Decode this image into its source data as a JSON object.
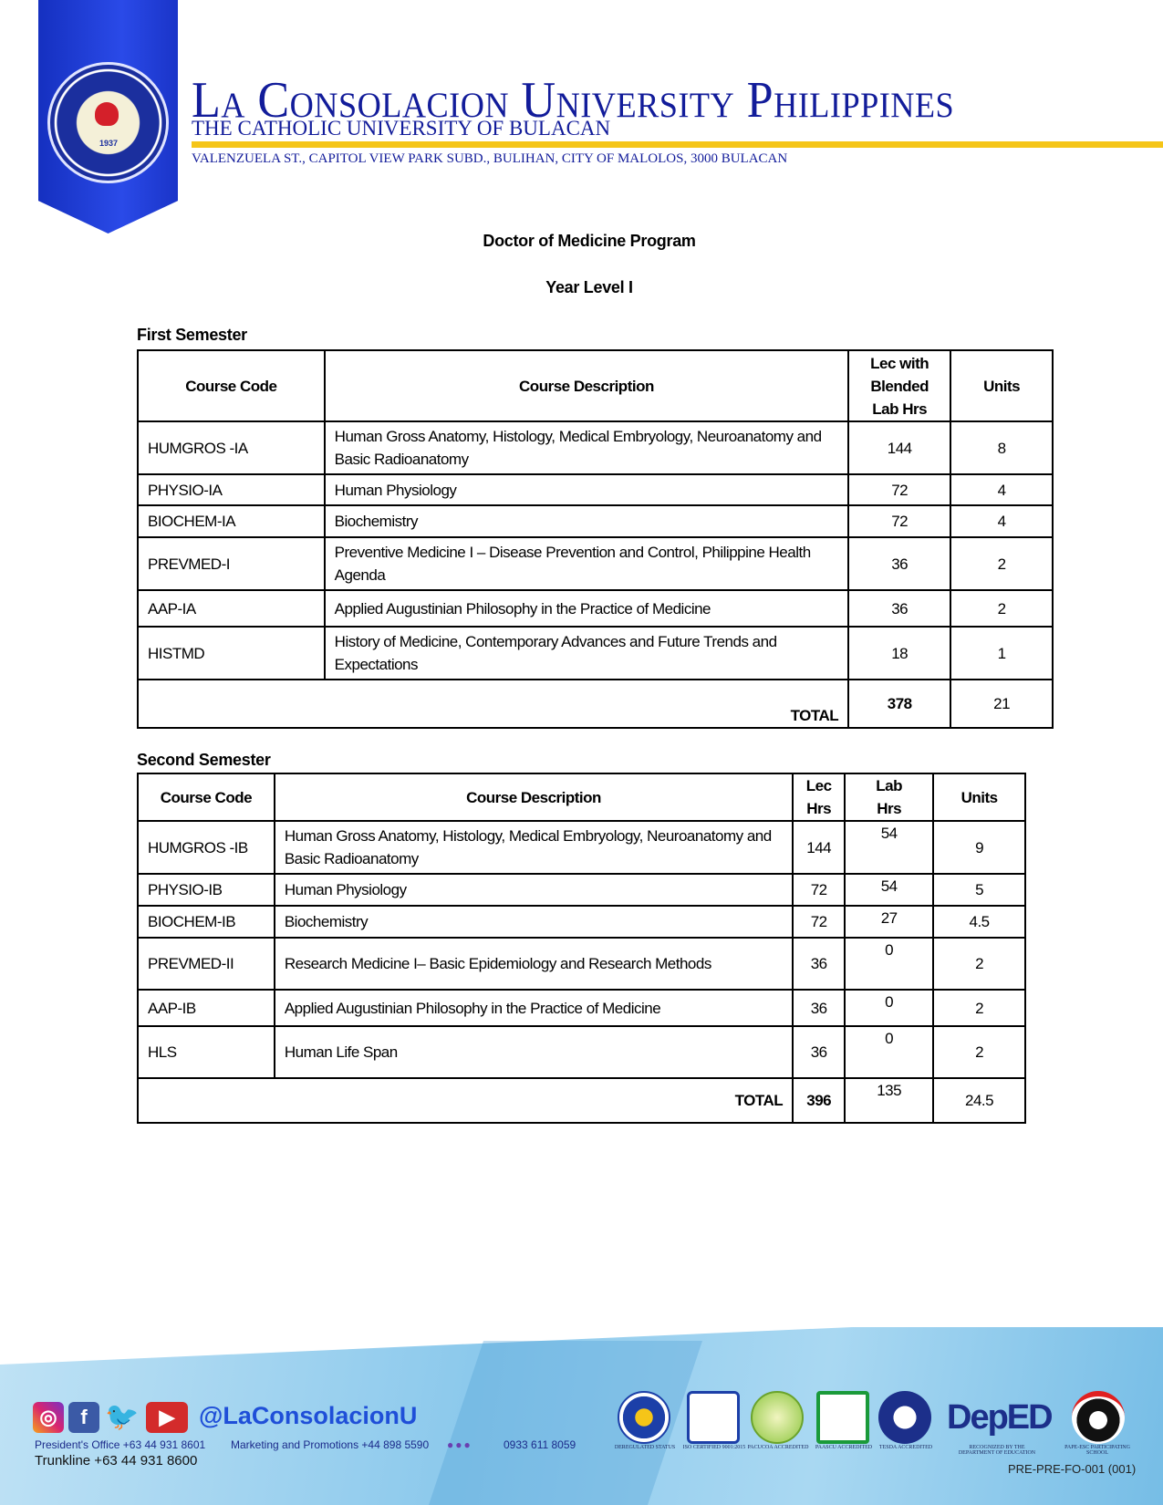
{
  "header": {
    "university": "La Consolacion University Philippines",
    "subtitle": "THE CATHOLIC UNIVERSITY OF BULACAN",
    "address": "VALENZUELA ST., CAPITOL VIEW PARK SUBD., BULIHAN, CITY OF MALOLOS, 3000 BULACAN",
    "seal_year": "1937"
  },
  "program": "Doctor of Medicine Program",
  "year_level": "Year Level I",
  "first": {
    "title": "First Semester",
    "headers": [
      "Course Code",
      "Course Description",
      "Lec with Blended Lab Hrs",
      "Units"
    ],
    "rows": [
      [
        "HUMGROS -IA",
        "Human Gross Anatomy, Histology, Medical Embryology, Neuroanatomy and Basic Radioanatomy",
        "144",
        "8"
      ],
      [
        "PHYSIO-IA",
        "Human Physiology",
        "72",
        "4"
      ],
      [
        "BIOCHEM-IA",
        "Biochemistry",
        "72",
        "4"
      ],
      [
        "PREVMED-I",
        "Preventive Medicine I – Disease Prevention and Control, Philippine Health Agenda",
        "36",
        "2"
      ],
      [
        "AAP-IA",
        "Applied Augustinian Philosophy in the Practice of Medicine",
        "36",
        "2"
      ],
      [
        "HISTMD",
        "History of Medicine, Contemporary Advances and Future Trends and Expectations",
        "18",
        "1"
      ]
    ],
    "total_label": "TOTAL",
    "total_hrs": "378",
    "total_units": "21"
  },
  "second": {
    "title": "Second Semester",
    "headers": [
      "Course Code",
      "Course Description",
      "Lec Hrs",
      "Lab Hrs",
      "Units"
    ],
    "rows": [
      [
        "HUMGROS -IB",
        "Human Gross Anatomy, Histology, Medical Embryology, Neuroanatomy and Basic Radioanatomy",
        "144",
        "54",
        "9"
      ],
      [
        "PHYSIO-IB",
        "Human Physiology",
        "72",
        "54",
        "5"
      ],
      [
        "BIOCHEM-IB",
        "Biochemistry",
        "72",
        "27",
        "4.5"
      ],
      [
        "PREVMED-II",
        "Research Medicine I– Basic Epidemiology and Research Methods",
        "36",
        "0",
        "2"
      ],
      [
        "AAP-IB",
        "Applied Augustinian Philosophy in the Practice of Medicine",
        "36",
        "0",
        "2"
      ],
      [
        "HLS",
        "Human Life Span",
        "36",
        "0",
        "2"
      ]
    ],
    "total_label": "TOTAL",
    "total_lec": "396",
    "total_lab": "135",
    "total_units": "24.5"
  },
  "footer": {
    "handle": "@LaConsolacionU",
    "president": "President's Office +63 44 931 8601",
    "marketing": "Marketing and Promotions +44 898 5590",
    "mobile": "0933 611 8059",
    "trunkline": "Trunkline +63 44 931 8600",
    "accreditations": [
      "DEREGULATED STATUS",
      "ISO CERTIFIED 9001:2015",
      "PACUCOA ACCREDITED",
      "PAASCU ACCREDITED",
      "TESDA ACCREDITED",
      "RECOGNIZED BY THE DEPARTMENT OF EDUCATION",
      "PAPE-ESC PARTICIPATING SCHOOL"
    ],
    "deped": "DepED",
    "form_code": "PRE-PRE-FO-001 (001)"
  }
}
